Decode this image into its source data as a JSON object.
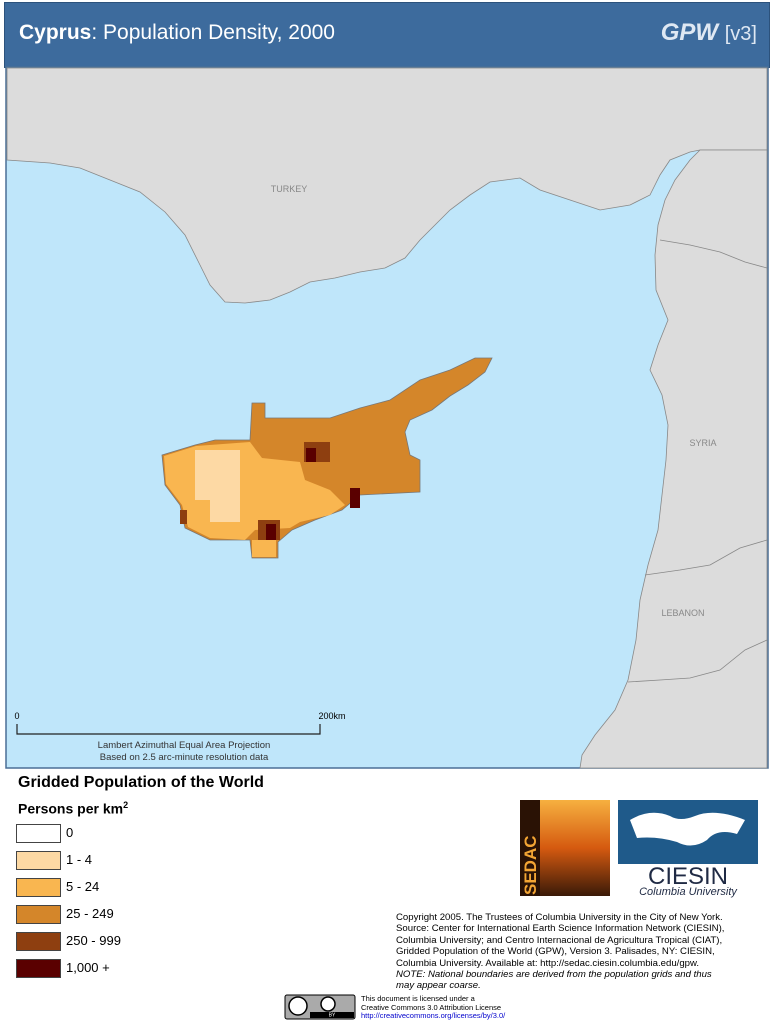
{
  "header": {
    "country": "Cyprus",
    "separator": ":",
    "title": "Population Density, 2000",
    "brand": "GPW",
    "version": "[v3]"
  },
  "map": {
    "labels": [
      "TURKEY",
      "SYRIA",
      "LEBANON"
    ],
    "scale_start": "0",
    "scale_end": "200km",
    "projection": [
      "Lambert Azimuthal Equal Area Projection",
      "Based on 2.5 arc-minute resolution data"
    ]
  },
  "legend": {
    "title": "Gridded Population of the World",
    "unit": "Persons per km",
    "unit_power": "2",
    "classes": [
      {
        "label": "0",
        "color": "#ffffff"
      },
      {
        "label": "1 - 4",
        "color": "#fdd9a4"
      },
      {
        "label": "5 - 24",
        "color": "#f9b650"
      },
      {
        "label": "25 - 249",
        "color": "#d4862a"
      },
      {
        "label": "250 - 999",
        "color": "#8e3f10"
      },
      {
        "label": "1,000 +",
        "color": "#5a0000"
      }
    ]
  },
  "logos": {
    "sedac": "SEDAC",
    "ciesin": "CIESIN",
    "ciesin_sub": "Columbia University"
  },
  "credits": [
    "Copyright 2005. The Trustees of Columbia University in the City of New York.",
    "Source: Center for International Earth Science Information Network (CIESIN),",
    "Columbia University; and Centro Internacional de Agricultura Tropical (CIAT),",
    "Gridded Population of the World (GPW),  Version 3.  Palisades, NY: CIESIN,",
    "Columbia University.   Available at:    http://sedac.ciesin.columbia.edu/gpw."
  ],
  "note": [
    "NOTE: National boundaries are derived from the population grids and thus",
    "may appear coarse."
  ],
  "license": {
    "badge": "BY",
    "lines": [
      "This document is licensed under a",
      "Creative Commons 3.0 Attribution License"
    ],
    "url": "http://creativecommons.org/licenses/by/3.0/"
  }
}
